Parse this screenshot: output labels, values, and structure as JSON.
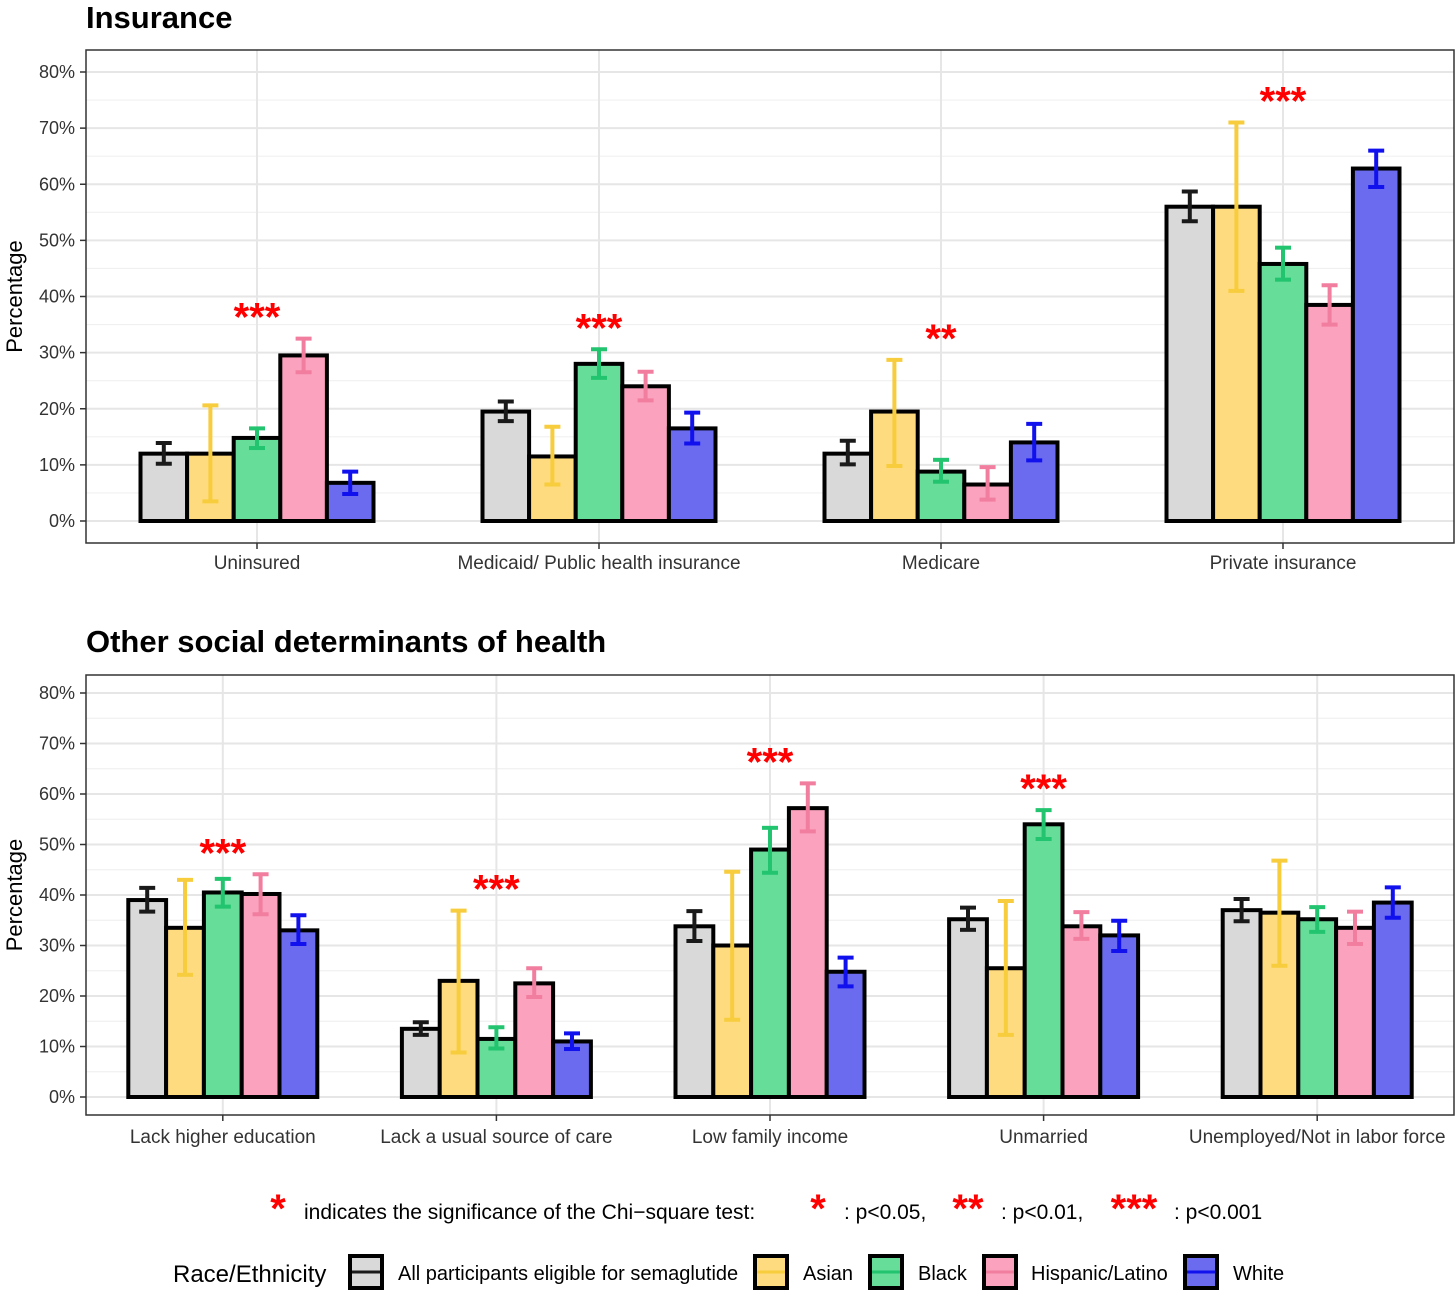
{
  "chart_data": [
    {
      "type": "bar",
      "title": "Insurance",
      "xlabel": "",
      "ylabel": "Percentage",
      "ylim": [
        0,
        80
      ],
      "yticks": [
        "0%",
        "10%",
        "20%",
        "30%",
        "40%",
        "50%",
        "60%",
        "70%",
        "80%"
      ],
      "grid": true,
      "categories": [
        "Uninsured",
        "Medicaid/ Public health insurance",
        "Medicare",
        "Private insurance"
      ],
      "significance": [
        "***",
        "***",
        "**",
        "***"
      ],
      "series": [
        {
          "name": "All participants eligible for semaglutide",
          "values": [
            12,
            19.5,
            12,
            56
          ],
          "err_low": [
            10.2,
            17.8,
            10.1,
            53.4
          ],
          "err_high": [
            13.9,
            21.3,
            14.3,
            58.7
          ]
        },
        {
          "name": "Asian",
          "values": [
            12,
            11.5,
            19.5,
            56
          ],
          "err_low": [
            3.5,
            6.5,
            9.8,
            41
          ],
          "err_high": [
            20.6,
            16.8,
            28.7,
            71
          ]
        },
        {
          "name": "Black",
          "values": [
            14.8,
            28,
            8.8,
            45.8
          ],
          "err_low": [
            13,
            25.5,
            7,
            43
          ],
          "err_high": [
            16.5,
            30.6,
            10.9,
            48.7
          ]
        },
        {
          "name": "Hispanic/Latino",
          "values": [
            29.5,
            24,
            6.5,
            38.5
          ],
          "err_low": [
            26.5,
            21.5,
            3.8,
            35
          ],
          "err_high": [
            32.5,
            26.6,
            9.6,
            42
          ]
        },
        {
          "name": "White",
          "values": [
            6.8,
            16.5,
            14,
            62.8
          ],
          "err_low": [
            4.8,
            13.8,
            10.8,
            59.5
          ],
          "err_high": [
            8.8,
            19.3,
            17.3,
            66
          ]
        }
      ]
    },
    {
      "type": "bar",
      "title": "Other social determinants of health",
      "xlabel": "",
      "ylabel": "Percentage",
      "ylim": [
        0,
        80
      ],
      "yticks": [
        "0%",
        "10%",
        "20%",
        "30%",
        "40%",
        "50%",
        "60%",
        "70%",
        "80%"
      ],
      "grid": true,
      "categories": [
        "Lack higher education",
        "Lack a usual source of care",
        "Low family income",
        "Unmarried",
        "Unemployed/Not in labor force"
      ],
      "significance": [
        "***",
        "***",
        "***",
        "***",
        ""
      ],
      "series": [
        {
          "name": "All participants eligible for semaglutide",
          "values": [
            39,
            13.5,
            33.8,
            35.2,
            37
          ],
          "err_low": [
            36.7,
            12.3,
            30.9,
            33.1,
            34.8
          ],
          "err_high": [
            41.4,
            14.8,
            36.8,
            37.5,
            39.2
          ]
        },
        {
          "name": "Asian",
          "values": [
            33.5,
            23,
            30,
            25.5,
            36.5
          ],
          "err_low": [
            24.2,
            8.8,
            15.3,
            12.3,
            26
          ],
          "err_high": [
            43,
            36.9,
            44.6,
            38.8,
            46.8
          ]
        },
        {
          "name": "Black",
          "values": [
            40.5,
            11.5,
            49,
            54,
            35.2
          ],
          "err_low": [
            37.7,
            9.6,
            44.4,
            51.1,
            32.7
          ],
          "err_high": [
            43.2,
            13.8,
            53.3,
            56.8,
            37.6
          ]
        },
        {
          "name": "Hispanic/Latino",
          "values": [
            40.2,
            22.5,
            57.2,
            33.8,
            33.5
          ],
          "err_low": [
            36.2,
            19.8,
            52.6,
            31.3,
            30.3
          ],
          "err_high": [
            44.1,
            25.5,
            62.1,
            36.6,
            36.7
          ]
        },
        {
          "name": "White",
          "values": [
            33,
            11,
            24.8,
            32,
            38.5
          ],
          "err_low": [
            30.3,
            9.5,
            21.9,
            28.9,
            35.5
          ],
          "err_high": [
            36,
            12.6,
            27.6,
            34.9,
            41.5
          ]
        }
      ]
    }
  ],
  "series_colors": [
    "#d9d9d9",
    "#ffdb80",
    "#66dd99",
    "#fba2bf",
    "#6b6bf0"
  ],
  "errorbar_colors": [
    "#1a1a1a",
    "#f7cc3d",
    "#22c46f",
    "#f27e9f",
    "#1111ee"
  ],
  "significance_color": "#ff0000",
  "note": {
    "star": "*",
    "text": "indicates the significance of the Chi−square test:",
    "items": [
      {
        "stars": "*",
        "label": ": p<0.05,"
      },
      {
        "stars": "**",
        "label": ": p<0.01,"
      },
      {
        "stars": "***",
        "label": ": p<0.001"
      }
    ]
  },
  "legend": {
    "title": "Race/Ethnicity",
    "position": "bottom",
    "items": [
      "All participants eligible for semaglutide",
      "Asian",
      "Black",
      "Hispanic/Latino",
      "White"
    ]
  }
}
